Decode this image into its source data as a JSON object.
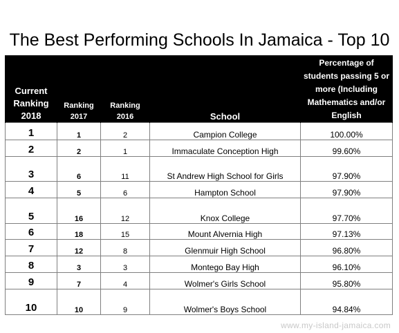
{
  "title": "The Best Performing Schools In Jamaica - Top 10",
  "headers": {
    "current": "Current Ranking 2018",
    "r2017": "Ranking 2017",
    "r2016": "Ranking 2016",
    "school": "School",
    "pct": "Percentage of students passing 5 or more (Including Mathematics and/or English"
  },
  "rows": [
    {
      "current": "1",
      "r2017": "1",
      "r2016": "2",
      "school": "Campion College",
      "pct": "100.00%"
    },
    {
      "current": "2",
      "r2017": "2",
      "r2016": "1",
      "school": "Immaculate Conception High",
      "pct": "99.60%"
    },
    {
      "current": "3",
      "r2017": "6",
      "r2016": "11",
      "school": "St Andrew High School for Girls",
      "pct": "97.90%"
    },
    {
      "current": "4",
      "r2017": "5",
      "r2016": "6",
      "school": "Hampton School",
      "pct": "97.90%"
    },
    {
      "current": "5",
      "r2017": "16",
      "r2016": "12",
      "school": "Knox College",
      "pct": "97.70%"
    },
    {
      "current": "6",
      "r2017": "18",
      "r2016": "15",
      "school": "Mount Alvernia High",
      "pct": "97.13%"
    },
    {
      "current": "7",
      "r2017": "12",
      "r2016": "8",
      "school": "Glenmuir High School",
      "pct": "96.80%"
    },
    {
      "current": "8",
      "r2017": "3",
      "r2016": "3",
      "school": "Montego Bay High",
      "pct": "96.10%"
    },
    {
      "current": "9",
      "r2017": "7",
      "r2016": "4",
      "school": "Wolmer's Girls School",
      "pct": "95.80%"
    },
    {
      "current": "10",
      "r2017": "10",
      "r2016": "9",
      "school": "Wolmer's Boys School",
      "pct": "94.84%"
    }
  ],
  "watermark": "www.my-island-jamaica.com"
}
